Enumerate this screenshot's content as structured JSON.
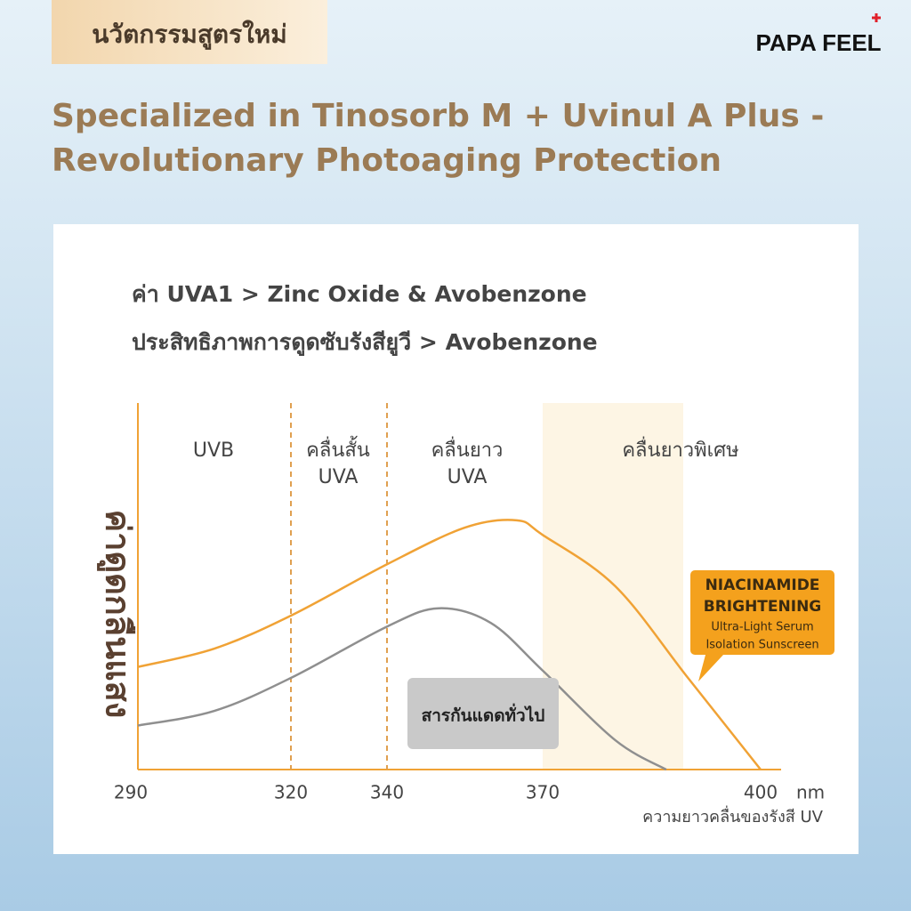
{
  "header": {
    "badge": "นวัตกรรมสูตรใหม่",
    "brand": "PAPA FEEL",
    "title_lines": [
      "Specialized in Tinosorb M + Uvinul A Plus -",
      "Revolutionary Photoaging Protection"
    ]
  },
  "chart_data": {
    "type": "line",
    "subtitle_lines": [
      "ค่า UVA1 > Zinc Oxide & Avobenzone",
      "ประสิทธิภาพการดูดซับรังสียูวี > Avobenzone"
    ],
    "regions": [
      [
        "UVB"
      ],
      [
        "คลื่นสั้น",
        "UVA"
      ],
      [
        "คลื่นยาว",
        "UVA"
      ],
      [
        "คลื่นยาวพิเศษ"
      ]
    ],
    "y_label": "ค่าดูดกลืนแสง",
    "x_label": "ความยาวคลื่นของรังสี UV",
    "x_unit": "nm",
    "xlim": [
      290,
      400
    ],
    "xticks": [
      290,
      320,
      340,
      370,
      400
    ],
    "ylim": [
      0,
      100
    ],
    "series": [
      {
        "color": "#f0a235",
        "x": [
          290,
          305,
          320,
          340,
          355,
          365,
          370,
          380,
          390,
          400
        ],
        "values": [
          28,
          33,
          42,
          56,
          66,
          68,
          64,
          50,
          25,
          0
        ]
      },
      {
        "color": "#8f8f8f",
        "x": [
          290,
          305,
          320,
          340,
          350,
          360,
          370,
          380,
          387
        ],
        "values": [
          12,
          16,
          25,
          39,
          44,
          40,
          27,
          8,
          0
        ]
      }
    ],
    "annotations": [
      [
        "NIACINAMIDE",
        "BRIGHTENING",
        "Ultra-Light Serum",
        "Isolation Sunscreen"
      ],
      [
        "สารกันแดดทั่วไป"
      ]
    ]
  }
}
